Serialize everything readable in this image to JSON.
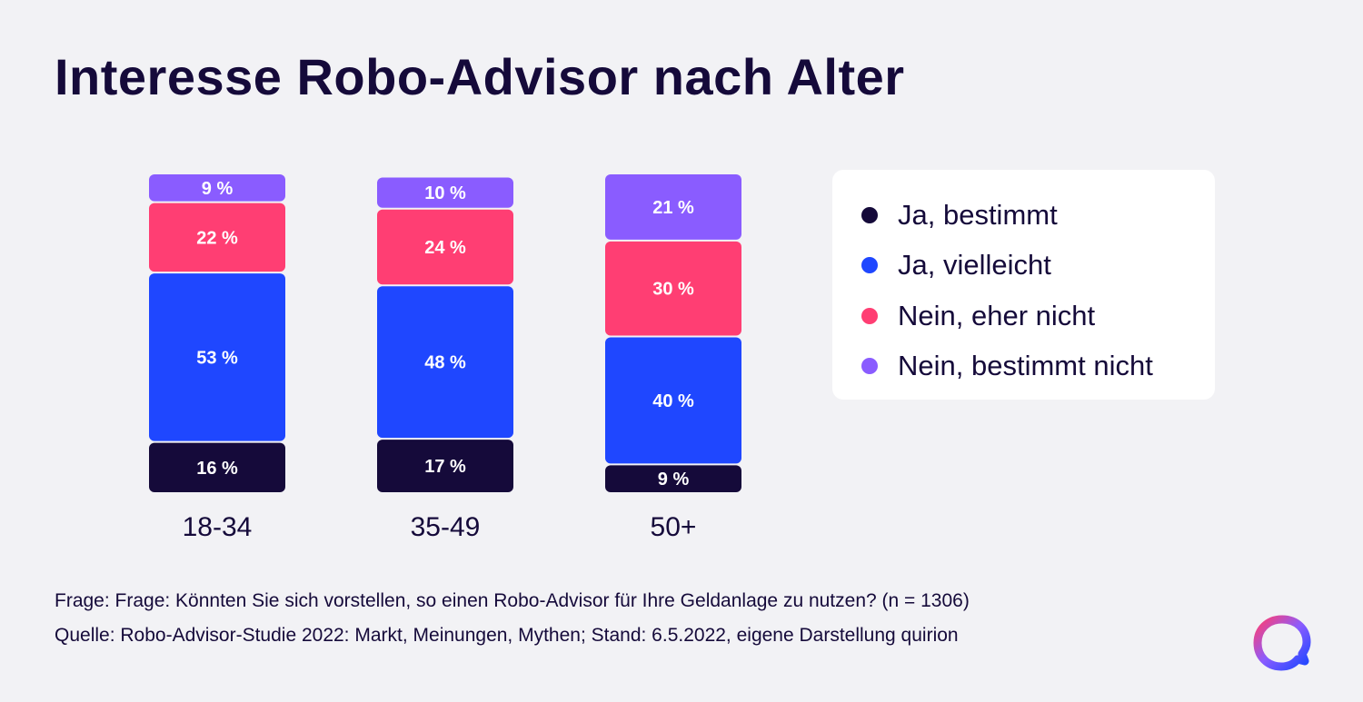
{
  "title": "Interesse Robo-Advisor nach Alter",
  "chart_data": {
    "type": "bar",
    "stacked": true,
    "categories": [
      "18-34",
      "35-49",
      "50+"
    ],
    "series": [
      {
        "name": "Ja, bestimmt",
        "values": [
          16,
          17,
          9
        ],
        "labels": [
          "16 %",
          "17 %",
          "9 %"
        ],
        "color": "#150a3a"
      },
      {
        "name": "Ja, vielleicht",
        "values": [
          53,
          48,
          40
        ],
        "labels": [
          "53 %",
          "48 %",
          "40 %"
        ],
        "color": "#1f47ff"
      },
      {
        "name": "Nein, eher nicht",
        "values": [
          22,
          24,
          30
        ],
        "labels": [
          "22 %",
          "24 %",
          "30 %"
        ],
        "color": "#ff3e73"
      },
      {
        "name": "Nein, bestimmt nicht",
        "values": [
          9,
          10,
          21
        ],
        "labels": [
          "9 %",
          "10 %",
          "21 %"
        ],
        "color": "#8a5cff"
      }
    ],
    "legend_position": "right",
    "grid": false
  },
  "footnotes": {
    "question": "Frage: Frage: Könnten Sie sich vorstellen, so einen Robo-Advisor für Ihre Geldanlage zu nutzen? (n = 1306)",
    "source": "Quelle: Robo-Advisor-Studie 2022: Markt, Meinungen, Mythen; Stand: 6.5.2022, eigene Darstellung quirion"
  },
  "logo": {
    "icon": "quirion-logo-icon",
    "colors": [
      "#ff3e73",
      "#8a5cff",
      "#1f47ff"
    ]
  }
}
